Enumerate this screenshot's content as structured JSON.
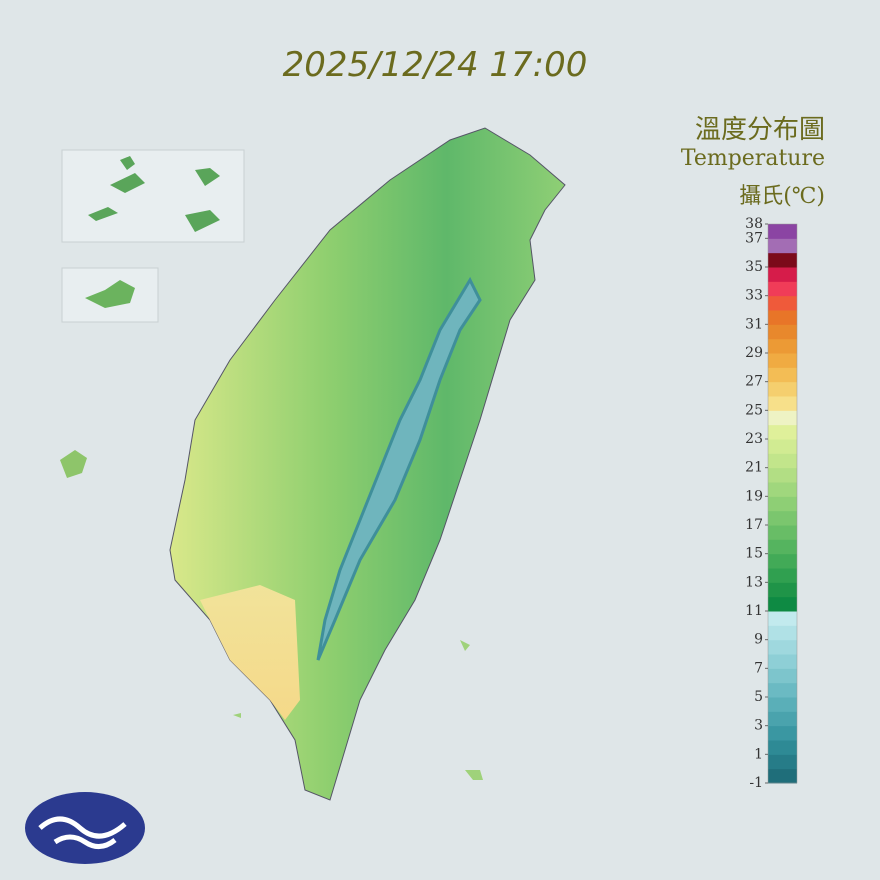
{
  "title": "2025/12/24 17:00",
  "legend": {
    "title": "溫度分布圖",
    "subtitle": "Temperature",
    "unit": "攝氏(℃)",
    "lim": [
      -1,
      38
    ],
    "ticks": [
      38,
      37,
      35,
      33,
      31,
      29,
      27,
      25,
      23,
      21,
      19,
      17,
      15,
      13,
      11,
      9,
      7,
      5,
      3,
      1,
      -1
    ],
    "colors": [
      "#1f6e7a",
      "#267c88",
      "#2e8a95",
      "#3a97a2",
      "#4aa3ad",
      "#5aafb8",
      "#6bbac3",
      "#7dc5cc",
      "#8ecfd6",
      "#9fd8de",
      "#b0e1e6",
      "#c2eaee",
      "#0e8a43",
      "#1f9448",
      "#30a050",
      "#42aa57",
      "#55b45f",
      "#68bd66",
      "#7bc66e",
      "#8ecf75",
      "#a0d77d",
      "#b2de84",
      "#c2e58b",
      "#d1eb92",
      "#dff09a",
      "#eef3c4",
      "#f7e08a",
      "#f5cf6e",
      "#f3bd55",
      "#f0ab42",
      "#ec9a35",
      "#e8882c",
      "#e87528",
      "#ef5a3a",
      "#f03c58",
      "#d61c4a",
      "#7c0a1a",
      "#a36db4",
      "#8b44a3"
    ]
  }
}
